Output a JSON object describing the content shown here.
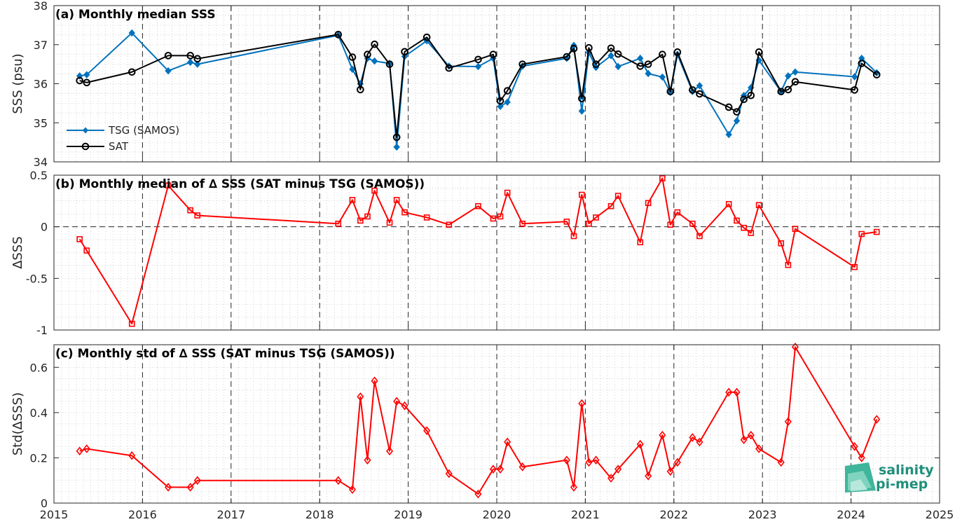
{
  "figure": {
    "logo": {
      "line1": "salinity",
      "line2": "pi-mep",
      "color": "#1f8f7a"
    },
    "x_ticks": [
      2015,
      2016,
      2017,
      2018,
      2019,
      2020,
      2021,
      2022,
      2023,
      2024,
      2025
    ],
    "x_tick_labels": [
      "2015",
      "2016",
      "2017",
      "2018",
      "2019",
      "2020",
      "2021",
      "2022",
      "2023",
      "2024",
      "2025"
    ],
    "colors": {
      "tsg": "#0072bd",
      "sat": "#000000",
      "delta": "#ff0000"
    }
  },
  "chart_data": [
    {
      "type": "line",
      "title": "(a) Monthly median SSS",
      "ylabel": "SSS (psu)",
      "xlim": [
        2015,
        2025
      ],
      "ylim": [
        34,
        38
      ],
      "yticks": [
        34,
        35,
        36,
        37,
        38
      ],
      "ytick_labels": [
        "34",
        "35",
        "36",
        "37",
        "38"
      ],
      "grid": true,
      "legend": "bottom-left",
      "x": [
        2015.29,
        2015.37,
        2015.88,
        2016.29,
        2016.54,
        2016.62,
        2018.21,
        2018.37,
        2018.46,
        2018.54,
        2018.62,
        2018.79,
        2018.87,
        2018.96,
        2019.21,
        2019.46,
        2019.79,
        2019.96,
        2020.04,
        2020.12,
        2020.29,
        2020.79,
        2020.87,
        2020.96,
        2021.04,
        2021.12,
        2021.29,
        2021.37,
        2021.62,
        2021.71,
        2021.87,
        2021.96,
        2022.04,
        2022.21,
        2022.29,
        2022.62,
        2022.71,
        2022.79,
        2022.87,
        2022.96,
        2023.21,
        2023.29,
        2023.37,
        2024.04,
        2024.12,
        2024.29
      ],
      "series": [
        {
          "name": "TSG (SAMOS)",
          "marker": "filled-diamond",
          "color": "#0072bd",
          "values": [
            36.2,
            36.23,
            37.3,
            36.33,
            36.55,
            36.5,
            37.24,
            36.37,
            36.0,
            36.65,
            36.58,
            36.52,
            34.38,
            36.7,
            37.1,
            36.45,
            36.44,
            36.65,
            35.42,
            35.53,
            36.45,
            36.65,
            36.98,
            35.3,
            36.8,
            36.42,
            36.72,
            36.44,
            36.65,
            36.26,
            36.17,
            35.78,
            36.75,
            35.8,
            35.95,
            34.7,
            35.05,
            35.7,
            35.9,
            36.6,
            35.8,
            36.2,
            36.3,
            36.18,
            36.65,
            36.28
          ]
        },
        {
          "name": "SAT",
          "marker": "open-circle",
          "color": "#000000",
          "values": [
            36.08,
            36.03,
            36.3,
            36.72,
            36.72,
            36.64,
            37.26,
            36.68,
            35.85,
            36.75,
            37.01,
            36.5,
            34.63,
            36.82,
            37.19,
            36.4,
            36.62,
            36.75,
            35.56,
            35.82,
            36.5,
            36.69,
            36.9,
            35.62,
            36.92,
            36.5,
            36.91,
            36.76,
            36.45,
            36.5,
            36.75,
            35.8,
            36.81,
            35.84,
            35.74,
            35.4,
            35.28,
            35.6,
            35.7,
            36.81,
            35.8,
            35.85,
            36.05,
            35.84,
            36.52,
            36.23
          ]
        }
      ]
    },
    {
      "type": "line",
      "title": "(b) Monthly median of ∆ SSS (SAT minus TSG (SAMOS))",
      "ylabel": "∆SSS",
      "xlim": [
        2015,
        2025
      ],
      "ylim": [
        -1,
        0.5
      ],
      "yticks": [
        -1,
        -0.5,
        0,
        0.5
      ],
      "ytick_labels": [
        "-1",
        "-0.5",
        "0",
        "0.5"
      ],
      "zero_line": true,
      "grid": true,
      "x": [
        2015.29,
        2015.37,
        2015.88,
        2016.29,
        2016.54,
        2016.62,
        2018.21,
        2018.37,
        2018.46,
        2018.54,
        2018.62,
        2018.79,
        2018.87,
        2018.96,
        2019.21,
        2019.46,
        2019.79,
        2019.96,
        2020.04,
        2020.12,
        2020.29,
        2020.79,
        2020.87,
        2020.96,
        2021.04,
        2021.12,
        2021.29,
        2021.37,
        2021.62,
        2021.71,
        2021.87,
        2021.96,
        2022.04,
        2022.21,
        2022.29,
        2022.62,
        2022.71,
        2022.79,
        2022.87,
        2022.96,
        2023.21,
        2023.29,
        2023.37,
        2024.04,
        2024.12,
        2024.29
      ],
      "series": [
        {
          "name": "",
          "marker": "open-square",
          "color": "#ff0000",
          "values": [
            -0.12,
            -0.23,
            -0.94,
            0.4,
            0.16,
            0.11,
            0.03,
            0.26,
            0.06,
            0.1,
            0.35,
            0.04,
            0.26,
            0.14,
            0.09,
            0.02,
            0.2,
            0.08,
            0.1,
            0.33,
            0.03,
            0.05,
            -0.09,
            0.31,
            0.03,
            0.09,
            0.2,
            0.3,
            -0.15,
            0.23,
            0.47,
            0.02,
            0.14,
            0.03,
            -0.09,
            0.22,
            0.06,
            -0.01,
            -0.06,
            0.21,
            -0.16,
            -0.37,
            -0.02,
            -0.39,
            -0.07,
            -0.05
          ]
        }
      ]
    },
    {
      "type": "line",
      "title": "(c) Monthly std of ∆ SSS (SAT minus TSG (SAMOS))",
      "ylabel": "Std(∆SSS)",
      "xlim": [
        2015,
        2025
      ],
      "ylim": [
        0,
        0.7
      ],
      "yticks": [
        0,
        0.2,
        0.4,
        0.6
      ],
      "ytick_labels": [
        "0",
        "0.2",
        "0.4",
        "0.6"
      ],
      "grid": true,
      "x": [
        2015.29,
        2015.37,
        2015.88,
        2016.29,
        2016.54,
        2016.62,
        2018.21,
        2018.37,
        2018.46,
        2018.54,
        2018.62,
        2018.79,
        2018.87,
        2018.96,
        2019.21,
        2019.46,
        2019.79,
        2019.96,
        2020.04,
        2020.12,
        2020.29,
        2020.79,
        2020.87,
        2020.96,
        2021.04,
        2021.12,
        2021.29,
        2021.37,
        2021.62,
        2021.71,
        2021.87,
        2021.96,
        2022.04,
        2022.21,
        2022.29,
        2022.62,
        2022.71,
        2022.79,
        2022.87,
        2022.96,
        2023.21,
        2023.29,
        2023.37,
        2024.04,
        2024.12,
        2024.29
      ],
      "series": [
        {
          "name": "",
          "marker": "open-diamond",
          "color": "#ff0000",
          "values": [
            0.23,
            0.24,
            0.21,
            0.07,
            0.07,
            0.1,
            0.1,
            0.06,
            0.47,
            0.19,
            0.54,
            0.23,
            0.45,
            0.43,
            0.32,
            0.13,
            0.04,
            0.15,
            0.15,
            0.27,
            0.16,
            0.19,
            0.07,
            0.44,
            0.18,
            0.19,
            0.11,
            0.15,
            0.26,
            0.12,
            0.3,
            0.14,
            0.18,
            0.29,
            0.27,
            0.49,
            0.49,
            0.28,
            0.3,
            0.24,
            0.18,
            0.36,
            0.69,
            0.25,
            0.2,
            0.37
          ]
        }
      ]
    }
  ]
}
